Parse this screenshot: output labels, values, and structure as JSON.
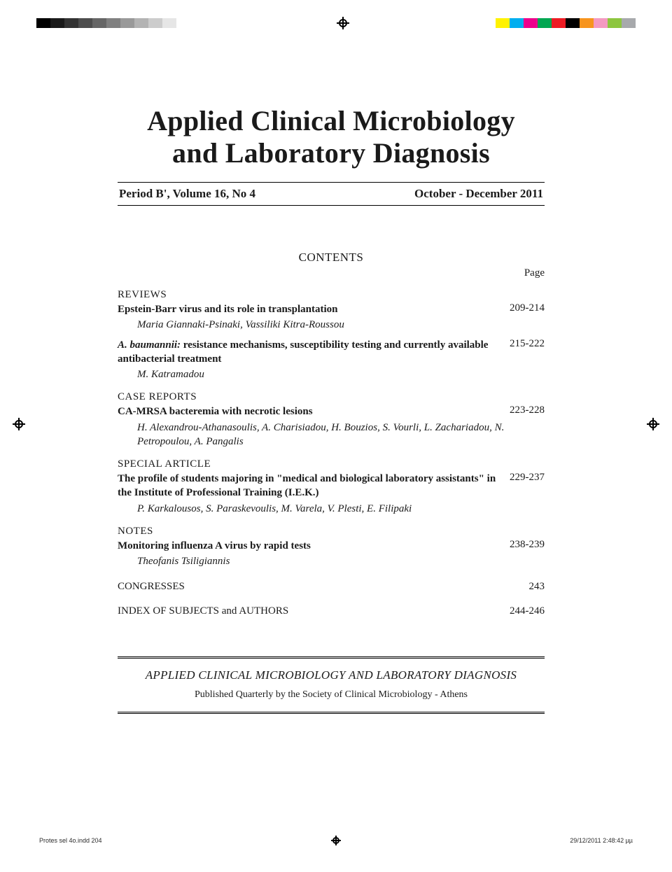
{
  "printbar": {
    "grayscale": [
      "#000000",
      "#1a1a1a",
      "#333333",
      "#4d4d4d",
      "#666666",
      "#808080",
      "#999999",
      "#b3b3b3",
      "#cccccc",
      "#e6e6e6",
      "#ffffff"
    ],
    "colors": [
      "#fff200",
      "#00aeef",
      "#ec008c",
      "#00a651",
      "#ed1c24",
      "#000000",
      "#f7941d",
      "#f49ac1",
      "#8dc63f",
      "#a7a9ac"
    ]
  },
  "journal": {
    "title_line1": "Applied Clinical Microbiology",
    "title_line2": "and Laboratory Diagnosis",
    "issue_left": "Period B', Volume 16, No 4",
    "issue_right": "October - December 2011"
  },
  "contents": {
    "heading": "CONTENTS",
    "page_label": "Page",
    "sections": [
      {
        "heading": "REVIEWS",
        "entries": [
          {
            "title_pre": "Epstein-Barr virus and its role in transplantation",
            "title_ital": "",
            "title_post": "",
            "pages": "209-214",
            "authors": "Maria Giannaki-Psinaki, Vassiliki Kitra-Roussou"
          },
          {
            "title_pre": "",
            "title_ital": "A. baumannii:",
            "title_post": " resistance mechanisms, susceptibility testing and currently available antibacterial treatment",
            "pages": "215-222",
            "authors": "M. Katramadou"
          }
        ]
      },
      {
        "heading": "CASE REPORTS",
        "entries": [
          {
            "title_pre": "CA-MRSA bacteremia with necrotic lesions",
            "title_ital": "",
            "title_post": "",
            "pages": "223-228",
            "authors": "H. Alexandrou-Athanasoulis, A. Charisiadou, H. Bouzios, S. Vourli, L. Zachariadou, N. Petropoulou, A. Pangalis"
          }
        ]
      },
      {
        "heading": "SPECIAL ARTICLE",
        "entries": [
          {
            "title_pre": "The profile of students majoring in \"medical and biological laboratory assistants\" in the Institute of Professional Training (I.E.K.)",
            "title_ital": "",
            "title_post": "",
            "pages": "229-237",
            "authors": "P. Karkalousos, S. Paraskevoulis, M. Varela, V. Plesti, E. Filipaki"
          }
        ]
      },
      {
        "heading": "NOTES",
        "entries": [
          {
            "title_pre": "Monitoring influenza A virus by rapid tests",
            "title_ital": "",
            "title_post": "",
            "pages": "238-239",
            "authors": "Theofanis Tsiligiannis"
          }
        ]
      }
    ],
    "tail_rows": [
      {
        "label": "CONGRESSES",
        "pages": "243"
      },
      {
        "label": "INDEX OF SUBJECTS and AUTHORS",
        "pages": "244-246"
      }
    ]
  },
  "footer": {
    "title": "APPLIED CLINICAL MICROBIOLOGY AND LABORATORY DIAGNOSIS",
    "sub": "Published Quarterly by the Society of Clinical Microbiology - Athens"
  },
  "slug": {
    "left": "Protes sel 4o.indd   204",
    "right": "29/12/2011   2:48:42 µµ"
  }
}
